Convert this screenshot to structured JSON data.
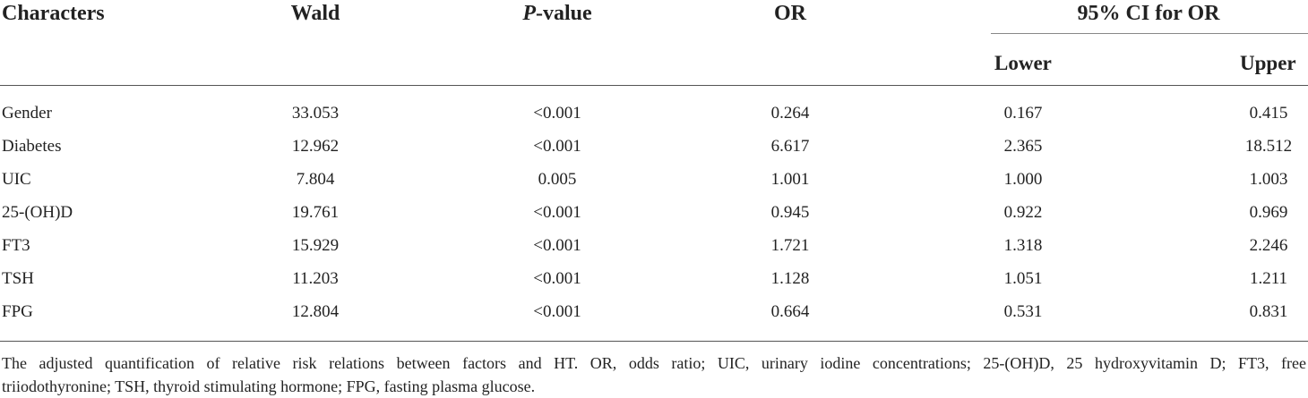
{
  "table": {
    "headers": {
      "characters": "Characters",
      "wald": "Wald",
      "p_value_italic": "P",
      "p_value_rest": "-value",
      "or": "OR",
      "ci": "95% CI for OR",
      "lower": "Lower",
      "upper": "Upper"
    },
    "rows": [
      {
        "character": "Gender",
        "wald": "33.053",
        "p": "<0.001",
        "or": "0.264",
        "lower": "0.167",
        "upper": "0.415"
      },
      {
        "character": "Diabetes",
        "wald": "12.962",
        "p": "<0.001",
        "or": "6.617",
        "lower": "2.365",
        "upper": "18.512"
      },
      {
        "character": "UIC",
        "wald": "7.804",
        "p": "0.005",
        "or": "1.001",
        "lower": "1.000",
        "upper": "1.003"
      },
      {
        "character": "25-(OH)D",
        "wald": "19.761",
        "p": "<0.001",
        "or": "0.945",
        "lower": "0.922",
        "upper": "0.969"
      },
      {
        "character": "FT3",
        "wald": "15.929",
        "p": "<0.001",
        "or": "1.721",
        "lower": "1.318",
        "upper": "2.246"
      },
      {
        "character": "TSH",
        "wald": "11.203",
        "p": "<0.001",
        "or": "1.128",
        "lower": "1.051",
        "upper": "1.211"
      },
      {
        "character": "FPG",
        "wald": "12.804",
        "p": "<0.001",
        "or": "0.664",
        "lower": "0.531",
        "upper": "0.831"
      }
    ]
  },
  "footnote": {
    "line1": "The adjusted quantification of relative risk relations between factors and HT. OR, odds ratio; UIC, urinary iodine concentrations; 25-(OH)D, 25 hydroxyvitamin D; FT3, free",
    "line2": "triiodothyronine; TSH, thyroid stimulating hormone; FPG, fasting plasma glucose."
  }
}
